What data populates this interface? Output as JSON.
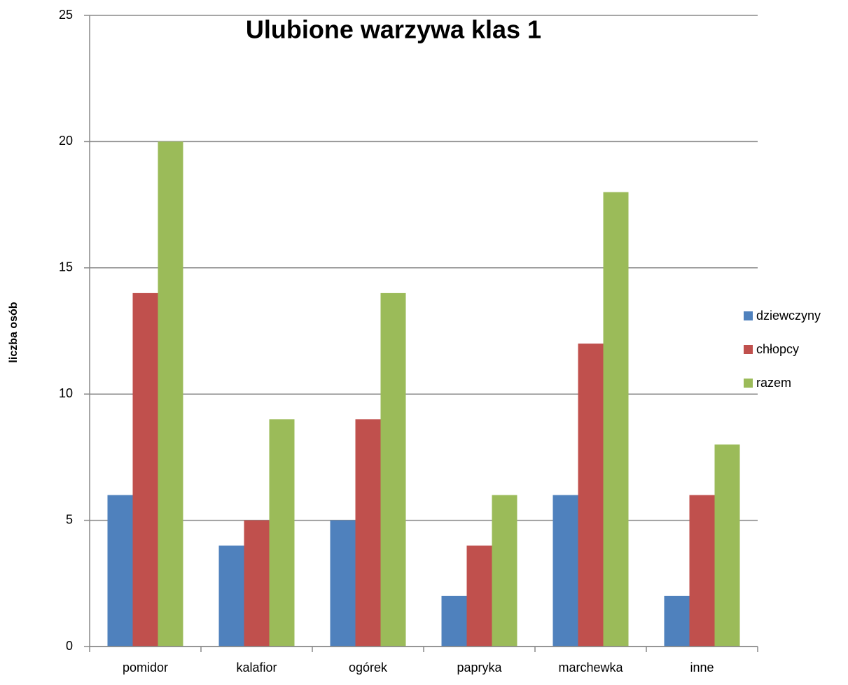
{
  "chart_data": {
    "type": "bar",
    "title": "Ulubione warzywa klas 1",
    "y_label": "liczba osób",
    "categories": [
      "pomidor",
      "kalafior",
      "ogórek",
      "papryka",
      "marchewka",
      "inne"
    ],
    "series": [
      {
        "name": "dziewczyny",
        "color": "#4f81bd",
        "values": [
          6,
          4,
          5,
          2,
          6,
          2
        ]
      },
      {
        "name": "chłopcy",
        "color": "#c0504d",
        "values": [
          14,
          5,
          9,
          4,
          12,
          6
        ]
      },
      {
        "name": "razem",
        "color": "#9bbb59",
        "values": [
          20,
          9,
          14,
          6,
          18,
          8
        ]
      }
    ],
    "ylim": [
      0,
      25
    ],
    "yticks": [
      0,
      5,
      10,
      15,
      20,
      25
    ],
    "grid": true,
    "legend": "right"
  }
}
